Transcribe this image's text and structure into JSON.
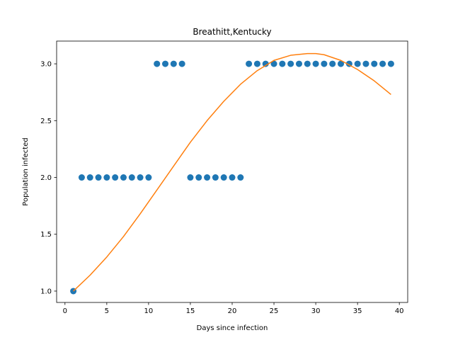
{
  "chart_data": {
    "type": "scatter",
    "title": "Breathitt,Kentucky",
    "xlabel": "Days since infection",
    "ylabel": "Population infected",
    "xlim": [
      -1.0,
      41.0
    ],
    "ylim": [
      0.9,
      3.2
    ],
    "xticks": [
      0,
      5,
      10,
      15,
      20,
      25,
      30,
      35,
      40
    ],
    "xtick_labels": [
      "0",
      "5",
      "10",
      "15",
      "20",
      "25",
      "30",
      "35",
      "40"
    ],
    "yticks": [
      1.0,
      1.5,
      2.0,
      2.5,
      3.0
    ],
    "ytick_labels": [
      "1.0",
      "1.5",
      "2.0",
      "2.5",
      "3.0"
    ],
    "grid": false,
    "series": [
      {
        "kind": "scatter",
        "color": "#1f77b4",
        "x": [
          1,
          2,
          3,
          4,
          5,
          6,
          7,
          8,
          9,
          10,
          11,
          12,
          13,
          14,
          15,
          16,
          17,
          18,
          19,
          20,
          21,
          22,
          23,
          24,
          25,
          26,
          27,
          28,
          29,
          30,
          31,
          32,
          33,
          34,
          35,
          36,
          37,
          38,
          39
        ],
        "y": [
          1,
          2,
          2,
          2,
          2,
          2,
          2,
          2,
          2,
          2,
          3,
          3,
          3,
          3,
          2,
          2,
          2,
          2,
          2,
          2,
          2,
          3,
          3,
          3,
          3,
          3,
          3,
          3,
          3,
          3,
          3,
          3,
          3,
          3,
          3,
          3,
          3,
          3,
          3
        ]
      },
      {
        "kind": "line",
        "color": "#ff7f0e",
        "x": [
          1,
          3,
          5,
          7,
          9,
          11,
          13,
          15,
          17,
          19,
          21,
          23,
          25,
          27,
          29,
          30,
          31,
          33,
          35,
          37,
          39
        ],
        "y": [
          1.0,
          1.14,
          1.3,
          1.48,
          1.68,
          1.89,
          2.1,
          2.31,
          2.5,
          2.67,
          2.82,
          2.94,
          3.03,
          3.075,
          3.09,
          3.09,
          3.08,
          3.03,
          2.95,
          2.85,
          2.73
        ]
      }
    ]
  }
}
